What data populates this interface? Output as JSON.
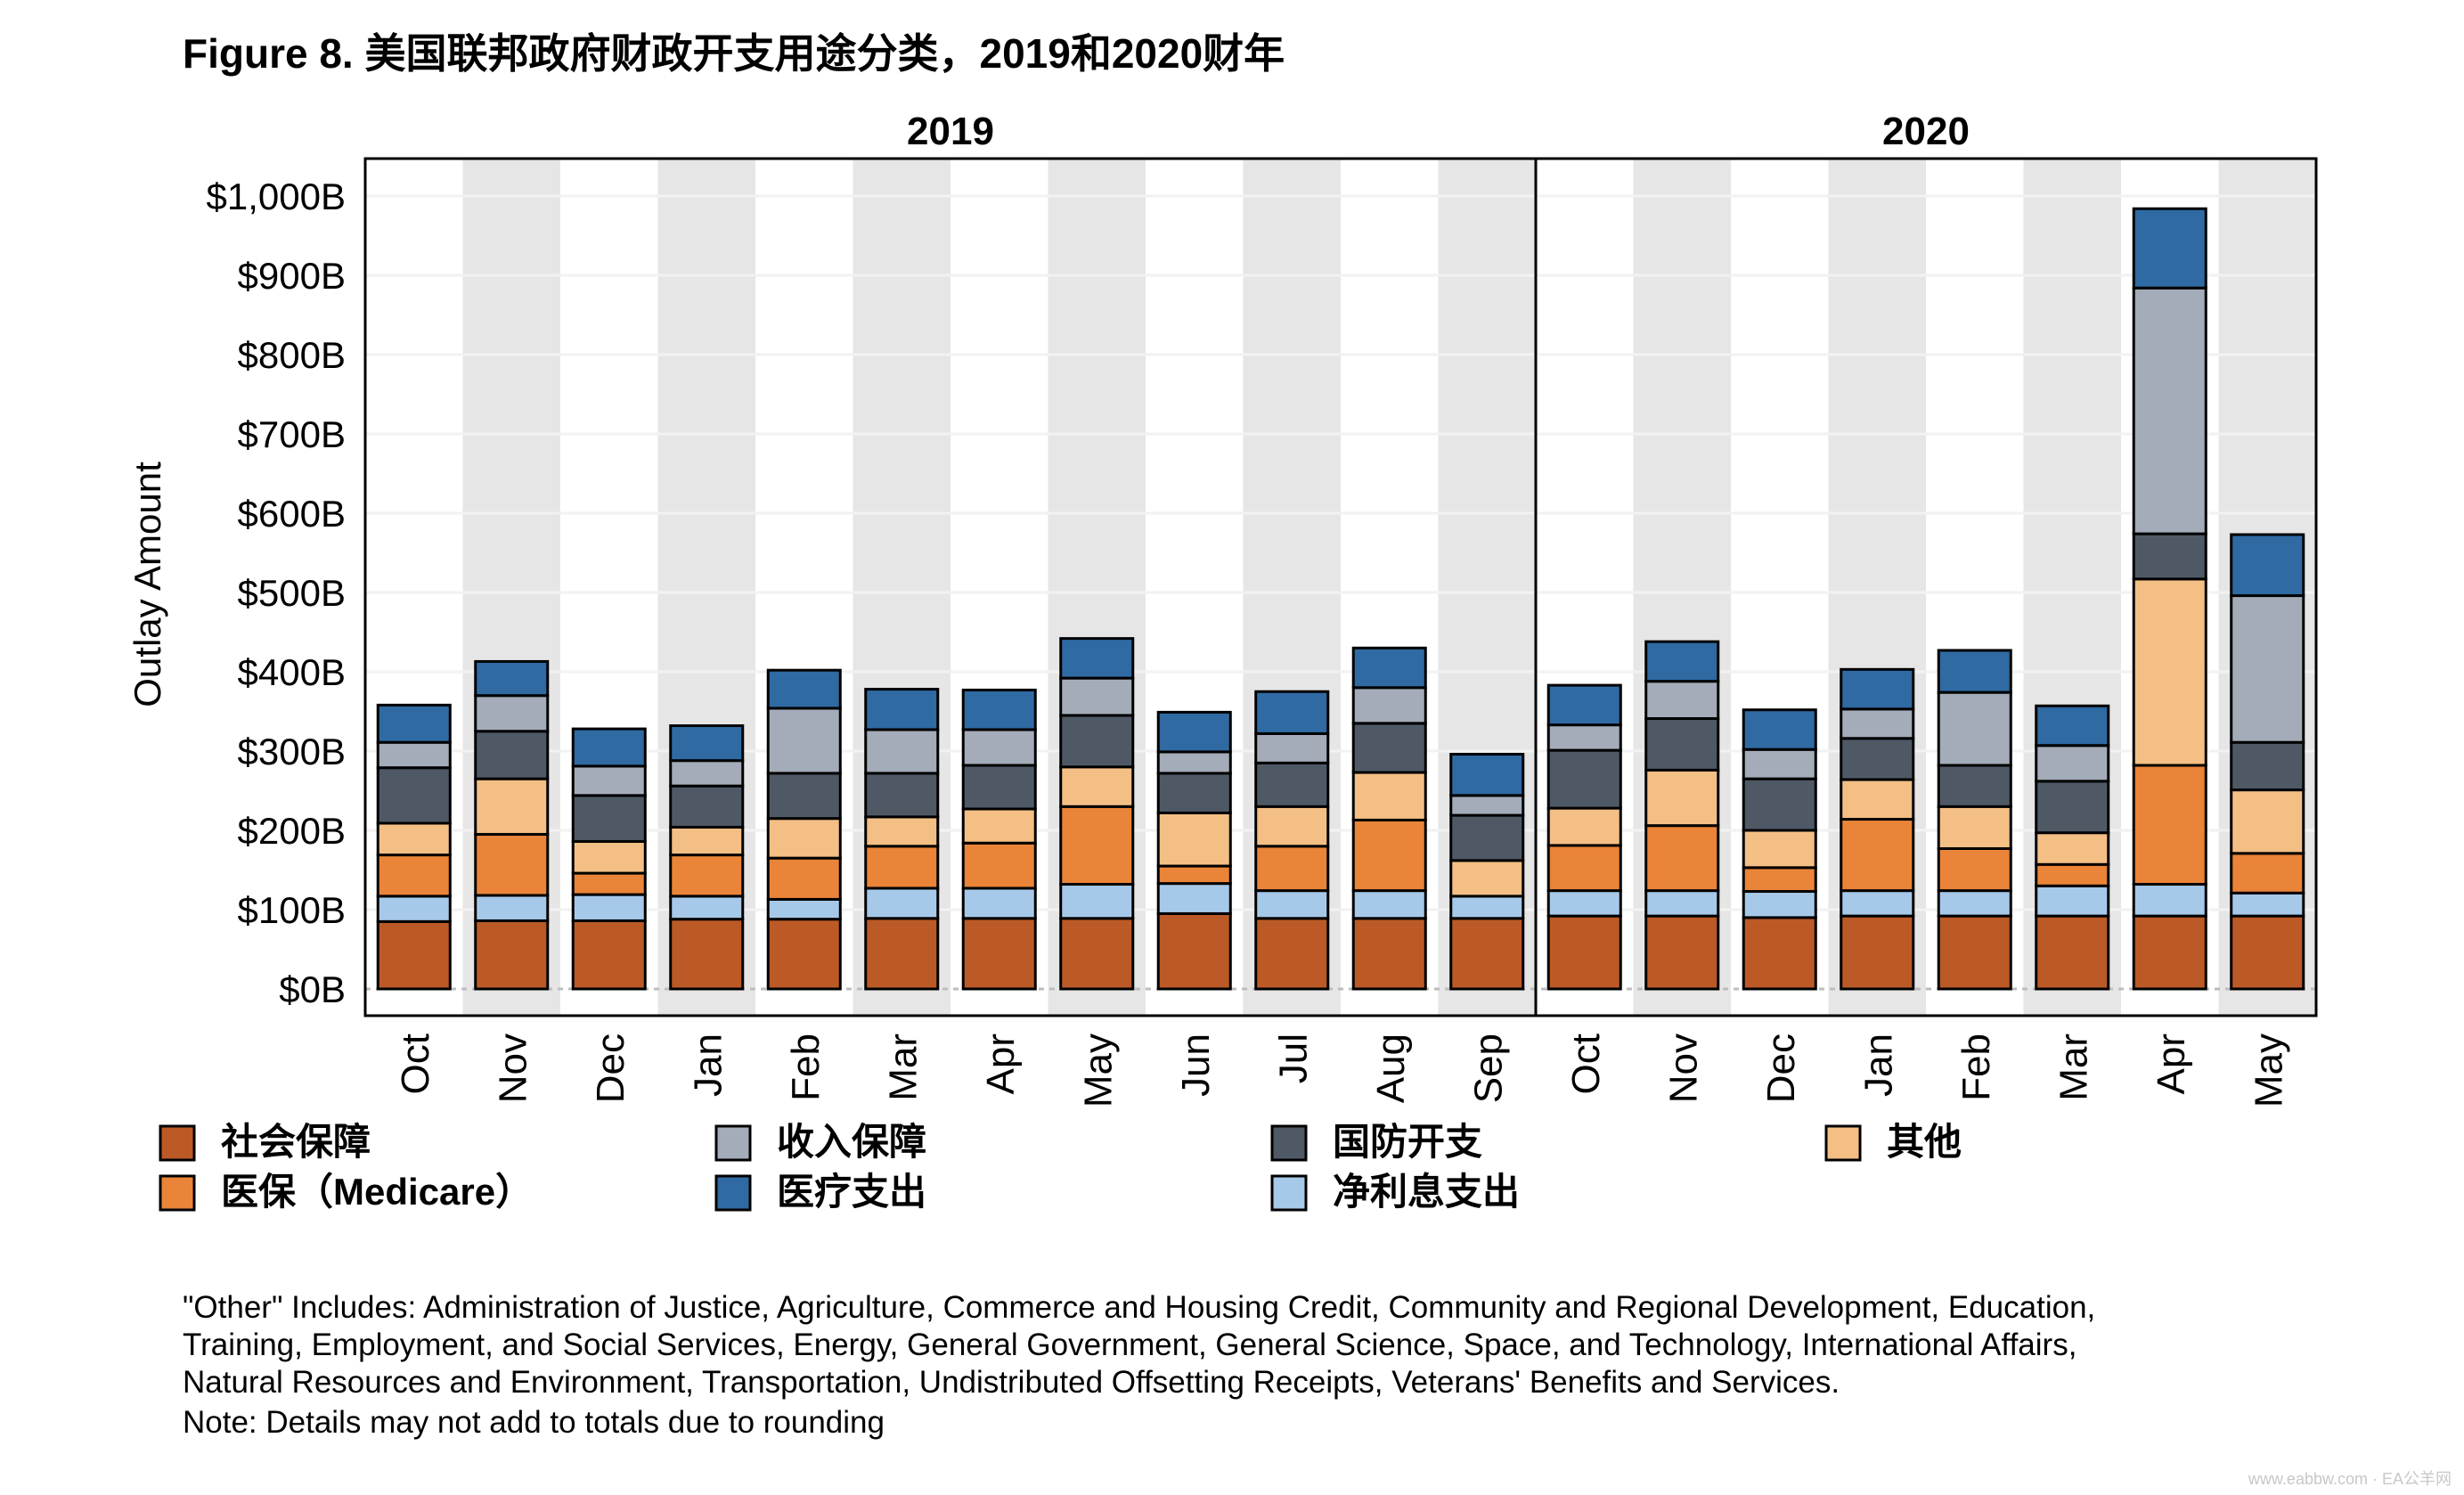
{
  "chart_data": {
    "type": "bar",
    "stacked": true,
    "title": "Figure 8.  美国联邦政府财政开支用途分类，2019和2020财年",
    "ylabel": "Outlay Amount",
    "ylim": [
      0,
      1000
    ],
    "yticks": [
      {
        "value": 0,
        "label": "$0B"
      },
      {
        "value": 100,
        "label": "$100B"
      },
      {
        "value": 200,
        "label": "$200B"
      },
      {
        "value": 300,
        "label": "$300B"
      },
      {
        "value": 400,
        "label": "$400B"
      },
      {
        "value": 500,
        "label": "$500B"
      },
      {
        "value": 600,
        "label": "$600B"
      },
      {
        "value": 700,
        "label": "$700B"
      },
      {
        "value": 800,
        "label": "$800B"
      },
      {
        "value": 900,
        "label": "$900B"
      },
      {
        "value": 1000,
        "label": "$1,000B"
      }
    ],
    "grid": true,
    "legend_position": "bottom",
    "panels": [
      {
        "label": "2019",
        "categories": [
          "Oct",
          "Nov",
          "Dec",
          "Jan",
          "Feb",
          "Mar",
          "Apr",
          "May",
          "Jun",
          "Jul",
          "Aug",
          "Sep"
        ],
        "series": [
          {
            "name": "社会保障",
            "values": [
              85,
              86,
              86,
              88,
              88,
              89,
              89,
              89,
              95,
              89,
              89,
              89
            ]
          },
          {
            "name": "净利息支出",
            "values": [
              32,
              32,
              33,
              29,
              25,
              38,
              38,
              43,
              38,
              35,
              35,
              28
            ]
          },
          {
            "name": "医保（Medicare）",
            "values": [
              52,
              77,
              27,
              52,
              52,
              53,
              57,
              98,
              22,
              56,
              89,
              0
            ]
          },
          {
            "name": "其他",
            "values": [
              40,
              70,
              40,
              35,
              50,
              37,
              43,
              50,
              67,
              50,
              60,
              45
            ]
          },
          {
            "name": "国防开支",
            "values": [
              70,
              60,
              58,
              52,
              57,
              55,
              55,
              65,
              50,
              55,
              62,
              57
            ]
          },
          {
            "name": "收入保障",
            "values": [
              32,
              45,
              37,
              32,
              82,
              55,
              45,
              47,
              27,
              37,
              45,
              25
            ]
          },
          {
            "name": "医疗支出",
            "values": [
              47,
              43,
              47,
              44,
              48,
              51,
              50,
              50,
              50,
              53,
              50,
              52
            ]
          }
        ]
      },
      {
        "label": "2020",
        "categories": [
          "Oct",
          "Nov",
          "Dec",
          "Jan",
          "Feb",
          "Mar",
          "Apr",
          "May"
        ],
        "series": [
          {
            "name": "社会保障",
            "values": [
              92,
              92,
              90,
              92,
              92,
              92,
              92,
              92
            ]
          },
          {
            "name": "净利息支出",
            "values": [
              32,
              32,
              33,
              32,
              32,
              38,
              40,
              29
            ]
          },
          {
            "name": "医保（Medicare）",
            "values": [
              57,
              82,
              30,
              90,
              53,
              27,
              150,
              50
            ]
          },
          {
            "name": "其他",
            "values": [
              47,
              70,
              47,
              50,
              53,
              40,
              235,
              80
            ]
          },
          {
            "name": "国防开支",
            "values": [
              73,
              65,
              65,
              52,
              52,
              65,
              57,
              60
            ]
          },
          {
            "name": "收入保障",
            "values": [
              32,
              47,
              37,
              37,
              92,
              45,
              310,
              185
            ]
          },
          {
            "name": "医疗支出",
            "values": [
              50,
              50,
              50,
              50,
              53,
              50,
              100,
              77
            ]
          }
        ]
      }
    ],
    "colors": {
      "社会保障": "#bb5a26",
      "净利息支出": "#a7c9e9",
      "医保（Medicare）": "#ea8438",
      "其他": "#f4bf85",
      "国防开支": "#4f5966",
      "收入保障": "#a3acb8",
      "医疗支出": "#2f6aa3"
    },
    "legend": [
      {
        "name": "社会保障",
        "label": "社会保障",
        "row": 0,
        "col": 0
      },
      {
        "name": "收入保障",
        "label": "收入保障",
        "row": 0,
        "col": 1
      },
      {
        "name": "国防开支",
        "label": "国防开支",
        "row": 0,
        "col": 2
      },
      {
        "name": "其他",
        "label": "其他",
        "row": 0,
        "col": 3
      },
      {
        "name": "医保（Medicare）",
        "label": "医保（Medicare）",
        "row": 1,
        "col": 0
      },
      {
        "name": "医疗支出",
        "label": "医疗支出",
        "row": 1,
        "col": 1
      },
      {
        "name": "净利息支出",
        "label": "净利息支出",
        "row": 1,
        "col": 2
      }
    ]
  },
  "footnotes": {
    "line1": "\"Other\" Includes: Administration of Justice, Agriculture, Commerce and Housing Credit, Community and Regional Development, Education,",
    "line2": "Training, Employment, and Social Services, Energy, General Government, General Science, Space, and Technology, International Affairs,",
    "line3": "Natural Resources and Environment, Transportation, Undistributed Offsetting Receipts, Veterans' Benefits and Services.",
    "note": "Note: Details may not add to totals due to rounding"
  },
  "watermark": "www.eabbw.com · EA公羊网"
}
